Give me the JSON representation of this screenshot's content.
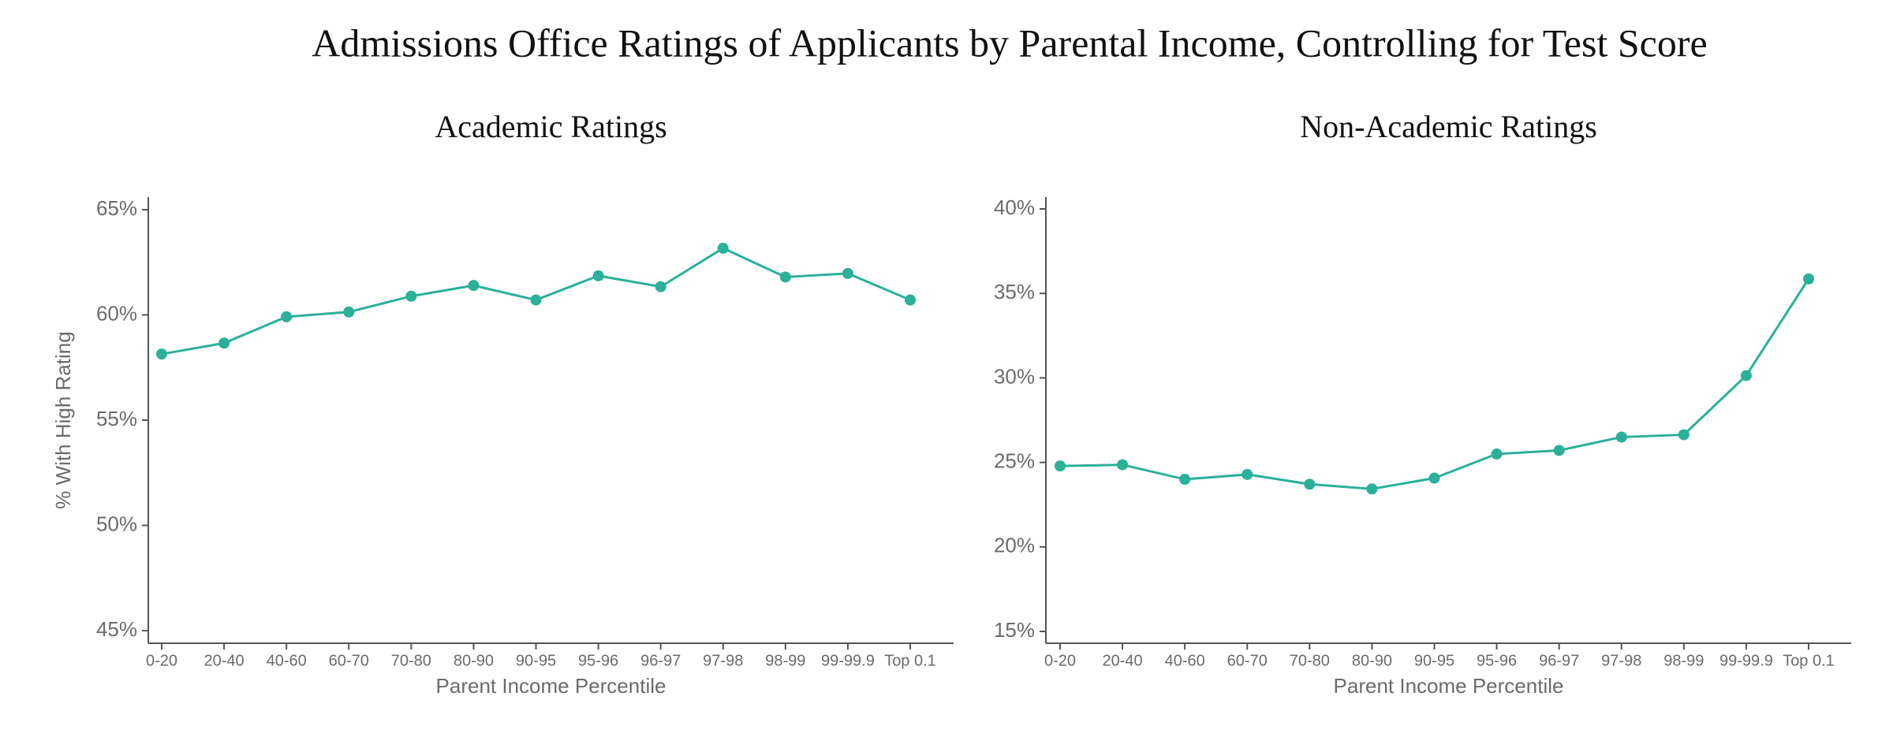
{
  "title": "Admissions Office Ratings of Applicants by Parental Income, Controlling for Test Score",
  "chart_data": [
    {
      "type": "line",
      "title": "Academic Ratings",
      "x_label": "Parent Income Percentile",
      "y_label": "% With High Rating",
      "categories": [
        "0-20",
        "20-40",
        "40-60",
        "60-70",
        "70-80",
        "80-90",
        "90-95",
        "95-96",
        "96-97",
        "97-98",
        "98-99",
        "99-99.9",
        "Top 0.1"
      ],
      "values": [
        58.14,
        58.66,
        59.91,
        60.14,
        60.89,
        61.4,
        60.71,
        61.86,
        61.34,
        63.17,
        61.8,
        61.97,
        60.71
      ],
      "color": "#2bb09a",
      "ylim": [
        44.4,
        65.6
      ],
      "yticks": [
        {
          "value": 45,
          "label": "45%"
        },
        {
          "value": 50,
          "label": "50%"
        },
        {
          "value": 55,
          "label": "55%"
        },
        {
          "value": 60,
          "label": "60%"
        },
        {
          "value": 65,
          "label": "65%"
        }
      ]
    },
    {
      "type": "line",
      "title": "Non-Academic Ratings",
      "x_label": "Parent Income Percentile",
      "categories": [
        "0-20",
        "20-40",
        "40-60",
        "60-70",
        "70-80",
        "80-90",
        "90-95",
        "95-96",
        "96-97",
        "97-98",
        "98-99",
        "99-99.9",
        "Top 0.1"
      ],
      "values": [
        24.79,
        24.86,
        24.0,
        24.29,
        23.71,
        23.43,
        24.07,
        25.5,
        25.71,
        26.5,
        26.64,
        30.14,
        35.86
      ],
      "color": "#2bb09a",
      "ylim": [
        14.3,
        40.7
      ],
      "yticks": [
        {
          "value": 15,
          "label": "15%"
        },
        {
          "value": 20,
          "label": "20%"
        },
        {
          "value": 25,
          "label": "25%"
        },
        {
          "value": 30,
          "label": "30%"
        },
        {
          "value": 35,
          "label": "35%"
        },
        {
          "value": 40,
          "label": "40%"
        }
      ]
    }
  ]
}
